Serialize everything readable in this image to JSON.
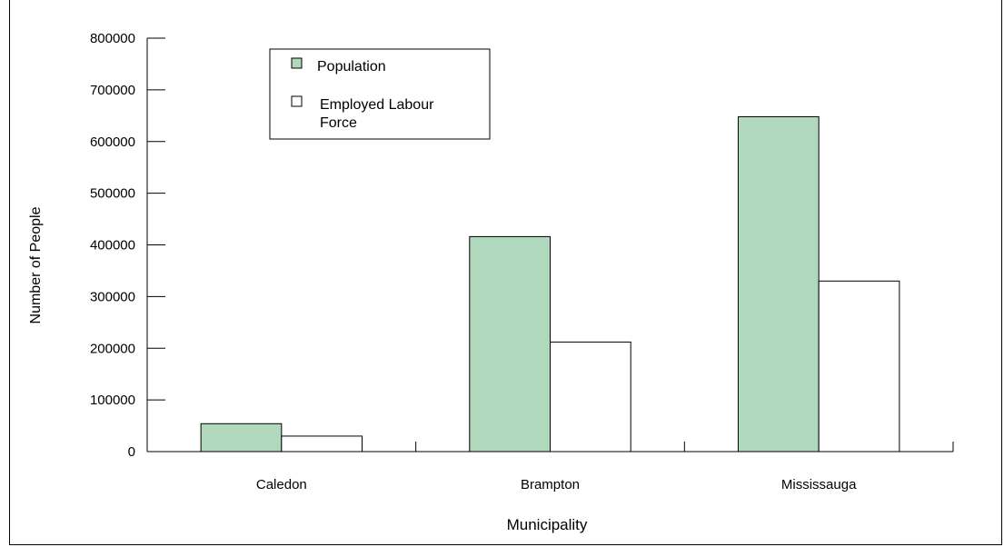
{
  "chart_data": {
    "type": "bar",
    "title": "",
    "xlabel": "Municipality",
    "ylabel": "Number of People",
    "categories": [
      "Caledon",
      "Brampton",
      "Mississauga"
    ],
    "series": [
      {
        "name": "Population",
        "values": [
          54000,
          416000,
          648000
        ]
      },
      {
        "name": "Employed Labour Force",
        "values": [
          30000,
          212000,
          330000
        ]
      }
    ],
    "ylim": [
      0,
      800000
    ],
    "yticks": [
      "0",
      "100000",
      "200000",
      "300000",
      "400000",
      "500000",
      "600000",
      "700000",
      "800000"
    ],
    "grid": false,
    "legend_position": "top-left",
    "colors": {
      "Population": "#b0d8bd",
      "Employed Labour Force": "#ffffff",
      "outline": "#000000"
    }
  }
}
